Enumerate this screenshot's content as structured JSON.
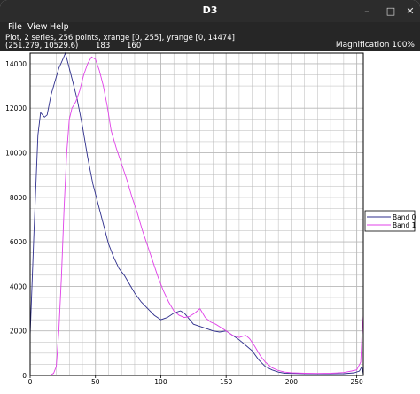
{
  "window": {
    "title": "D3",
    "controls": {
      "minimize": "–",
      "maximize": "□",
      "close": "✕"
    }
  },
  "menu": {
    "file": "File",
    "view": "View",
    "help": "Help"
  },
  "info": {
    "summary": "Plot, 2 series, 256 points, xrange [0, 255], yrange [0, 14474]",
    "cursor": "(251.279, 10529.6)",
    "value_a": "183",
    "value_b": "160",
    "magnification": "Magnification 100%"
  },
  "colors": {
    "band0": "#2e2e8c",
    "band1": "#e040e8",
    "grid": "#b8b8b8",
    "axis": "#000000"
  },
  "chart_data": {
    "type": "line",
    "xlim": [
      0,
      255
    ],
    "ylim": [
      0,
      14474
    ],
    "x_ticks": [
      0,
      50,
      100,
      150,
      200,
      250
    ],
    "y_ticks": [
      0,
      2000,
      4000,
      6000,
      8000,
      10000,
      12000,
      14000
    ],
    "x_tick_labels": [
      "0",
      "50",
      "100",
      "150",
      "200",
      "250"
    ],
    "y_tick_labels": [
      "0",
      "2000",
      "4000",
      "6000",
      "8000",
      "10000",
      "12000",
      "14000"
    ],
    "grid": true,
    "legend_position": "right",
    "series": [
      {
        "name": "Band 0",
        "points": [
          [
            0,
            1800
          ],
          [
            3,
            6500
          ],
          [
            6,
            10800
          ],
          [
            8,
            11800
          ],
          [
            11,
            11600
          ],
          [
            13,
            11700
          ],
          [
            16,
            12600
          ],
          [
            19,
            13200
          ],
          [
            22,
            13800
          ],
          [
            25,
            14200
          ],
          [
            27,
            14474
          ],
          [
            30,
            13800
          ],
          [
            33,
            13100
          ],
          [
            36,
            12400
          ],
          [
            40,
            11200
          ],
          [
            44,
            9800
          ],
          [
            48,
            8600
          ],
          [
            52,
            7700
          ],
          [
            56,
            6800
          ],
          [
            60,
            5900
          ],
          [
            64,
            5300
          ],
          [
            68,
            4800
          ],
          [
            72,
            4500
          ],
          [
            75,
            4200
          ],
          [
            80,
            3700
          ],
          [
            85,
            3300
          ],
          [
            90,
            3000
          ],
          [
            95,
            2700
          ],
          [
            100,
            2500
          ],
          [
            105,
            2600
          ],
          [
            110,
            2800
          ],
          [
            115,
            2900
          ],
          [
            118,
            2800
          ],
          [
            125,
            2300
          ],
          [
            130,
            2200
          ],
          [
            135,
            2100
          ],
          [
            140,
            2000
          ],
          [
            145,
            1950
          ],
          [
            150,
            2000
          ],
          [
            155,
            1800
          ],
          [
            160,
            1600
          ],
          [
            165,
            1350
          ],
          [
            170,
            1100
          ],
          [
            175,
            700
          ],
          [
            180,
            400
          ],
          [
            185,
            250
          ],
          [
            190,
            150
          ],
          [
            195,
            100
          ],
          [
            200,
            90
          ],
          [
            210,
            80
          ],
          [
            220,
            70
          ],
          [
            230,
            70
          ],
          [
            240,
            80
          ],
          [
            248,
            120
          ],
          [
            252,
            200
          ],
          [
            254,
            400
          ],
          [
            255,
            50
          ]
        ]
      },
      {
        "name": "Band 1",
        "points": [
          [
            0,
            0
          ],
          [
            10,
            0
          ],
          [
            15,
            0
          ],
          [
            18,
            100
          ],
          [
            20,
            400
          ],
          [
            22,
            2000
          ],
          [
            24,
            4500
          ],
          [
            26,
            7500
          ],
          [
            28,
            10000
          ],
          [
            30,
            11500
          ],
          [
            32,
            12000
          ],
          [
            35,
            12300
          ],
          [
            38,
            12800
          ],
          [
            41,
            13500
          ],
          [
            44,
            14000
          ],
          [
            47,
            14300
          ],
          [
            50,
            14200
          ],
          [
            53,
            13700
          ],
          [
            56,
            13000
          ],
          [
            59,
            12100
          ],
          [
            62,
            11000
          ],
          [
            66,
            10200
          ],
          [
            70,
            9500
          ],
          [
            74,
            8800
          ],
          [
            78,
            8000
          ],
          [
            82,
            7300
          ],
          [
            86,
            6500
          ],
          [
            90,
            5800
          ],
          [
            94,
            5100
          ],
          [
            98,
            4400
          ],
          [
            102,
            3800
          ],
          [
            106,
            3300
          ],
          [
            110,
            2900
          ],
          [
            114,
            2700
          ],
          [
            118,
            2600
          ],
          [
            122,
            2650
          ],
          [
            126,
            2800
          ],
          [
            130,
            3000
          ],
          [
            134,
            2600
          ],
          [
            138,
            2400
          ],
          [
            142,
            2300
          ],
          [
            146,
            2150
          ],
          [
            150,
            2000
          ],
          [
            155,
            1800
          ],
          [
            160,
            1700
          ],
          [
            165,
            1800
          ],
          [
            168,
            1650
          ],
          [
            172,
            1300
          ],
          [
            176,
            900
          ],
          [
            180,
            600
          ],
          [
            185,
            350
          ],
          [
            190,
            220
          ],
          [
            195,
            150
          ],
          [
            200,
            120
          ],
          [
            210,
            100
          ],
          [
            220,
            90
          ],
          [
            230,
            100
          ],
          [
            240,
            130
          ],
          [
            246,
            200
          ],
          [
            250,
            250
          ],
          [
            253,
            600
          ],
          [
            254,
            1800
          ],
          [
            255,
            2700
          ]
        ]
      }
    ]
  }
}
